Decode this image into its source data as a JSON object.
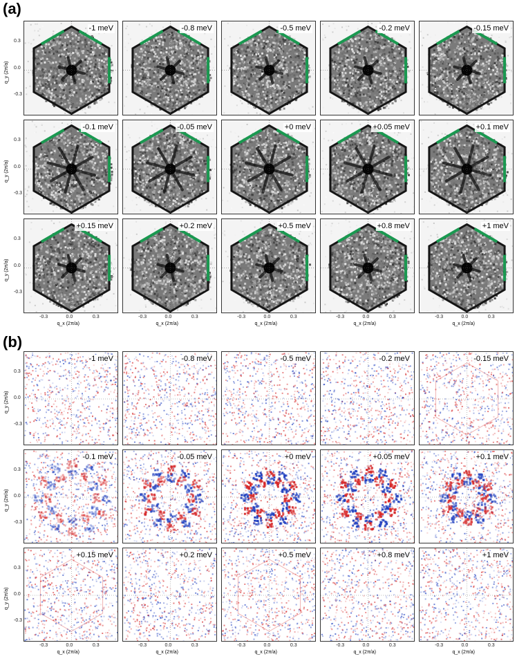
{
  "panels": [
    {
      "label": "(a)",
      "type": "grayscale-fourier",
      "energies": [
        [
          "-1 meV",
          "-0.8 meV",
          "-0.5 meV",
          "-0.2 meV",
          "-0.15 meV"
        ],
        [
          "-0.1 meV",
          "-0.05 meV",
          "+0 meV",
          "+0.05 meV",
          "+0.1 meV"
        ],
        [
          "+0.15 meV",
          "+0.2 meV",
          "+0.5 meV",
          "+0.8 meV",
          "+1 meV"
        ]
      ]
    },
    {
      "label": "(b)",
      "type": "diverging-difference",
      "energies": [
        [
          "-1 meV",
          "-0.8 meV",
          "-0.5 meV",
          "-0.2 meV",
          "-0.15 meV"
        ],
        [
          "-0.1 meV",
          "-0.05 meV",
          "+0 meV",
          "+0.05 meV",
          "+0.1 meV"
        ],
        [
          "+0.15 meV",
          "+0.2 meV",
          "+0.5 meV",
          "+0.8 meV",
          "+1 meV"
        ]
      ]
    }
  ],
  "axes": {
    "ylabel": "q_y (2π/a)",
    "xlabel": "q_x (2π/a)",
    "yticks": [
      "0.3",
      "0.0",
      "-0.3"
    ],
    "xticks": [
      "-0.3",
      "0.0",
      "0.3"
    ]
  },
  "colors": {
    "hexagon_edge": "#1a9850",
    "positive": "#d62728",
    "negative": "#1f3fbf"
  }
}
